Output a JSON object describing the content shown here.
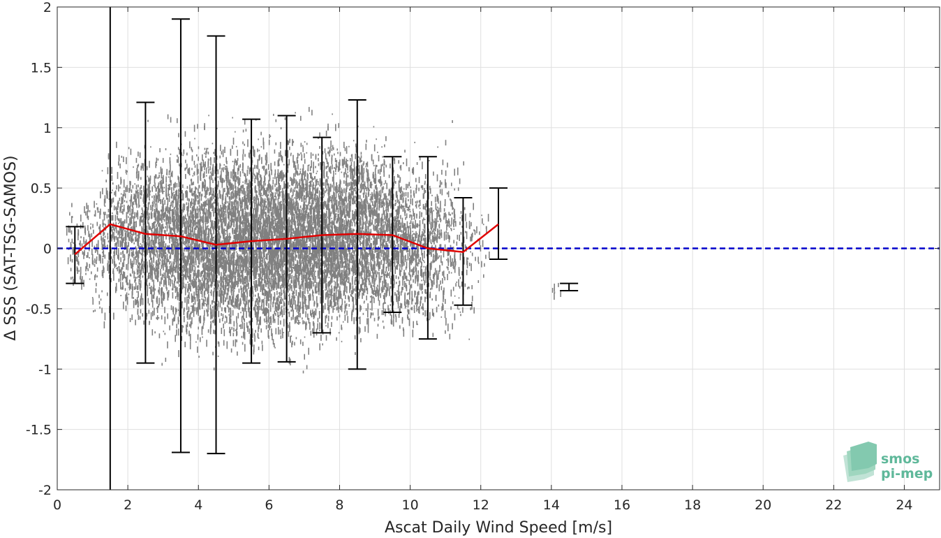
{
  "chart_data": {
    "type": "scatter",
    "xlabel": "Ascat Daily Wind Speed [m/s]",
    "ylabel": "Δ SSS (SAT-TSG-SAMOS)",
    "xlim": [
      0,
      25
    ],
    "ylim": [
      -2,
      2
    ],
    "xticks": [
      0,
      2,
      4,
      6,
      8,
      10,
      12,
      14,
      16,
      18,
      20,
      22,
      24
    ],
    "yticks": [
      -2,
      -1.5,
      -1,
      -0.5,
      0,
      0.5,
      1,
      1.5,
      2
    ],
    "grid": true,
    "scatter_color": "#808080",
    "mean_line_color": "#e00000",
    "reference_line_color": "#0000cc",
    "errorbar_color": "#000000",
    "reference_line": {
      "y": 0,
      "style": "dashed"
    },
    "scatter_cloud": [
      {
        "x": 0.5,
        "center": 0.0,
        "spread": 0.15,
        "n": 60
      },
      {
        "x": 1.0,
        "center": 0.05,
        "spread": 0.25,
        "n": 90
      },
      {
        "x": 1.5,
        "center": 0.15,
        "spread": 0.3,
        "n": 180
      },
      {
        "x": 2.0,
        "center": 0.1,
        "spread": 0.3,
        "n": 260
      },
      {
        "x": 2.5,
        "center": 0.12,
        "spread": 0.32,
        "n": 360
      },
      {
        "x": 3.0,
        "center": 0.1,
        "spread": 0.33,
        "n": 440
      },
      {
        "x": 3.5,
        "center": 0.08,
        "spread": 0.35,
        "n": 520
      },
      {
        "x": 4.0,
        "center": 0.06,
        "spread": 0.36,
        "n": 600
      },
      {
        "x": 4.5,
        "center": 0.05,
        "spread": 0.36,
        "n": 650
      },
      {
        "x": 5.0,
        "center": 0.06,
        "spread": 0.36,
        "n": 700
      },
      {
        "x": 5.5,
        "center": 0.07,
        "spread": 0.36,
        "n": 720
      },
      {
        "x": 6.0,
        "center": 0.08,
        "spread": 0.36,
        "n": 740
      },
      {
        "x": 6.5,
        "center": 0.09,
        "spread": 0.36,
        "n": 740
      },
      {
        "x": 7.0,
        "center": 0.1,
        "spread": 0.35,
        "n": 720
      },
      {
        "x": 7.5,
        "center": 0.11,
        "spread": 0.34,
        "n": 700
      },
      {
        "x": 8.0,
        "center": 0.12,
        "spread": 0.34,
        "n": 650
      },
      {
        "x": 8.5,
        "center": 0.12,
        "spread": 0.34,
        "n": 580
      },
      {
        "x": 9.0,
        "center": 0.1,
        "spread": 0.32,
        "n": 500
      },
      {
        "x": 9.5,
        "center": 0.1,
        "spread": 0.3,
        "n": 420
      },
      {
        "x": 10.0,
        "center": 0.05,
        "spread": 0.3,
        "n": 330
      },
      {
        "x": 10.5,
        "center": 0.02,
        "spread": 0.3,
        "n": 260
      },
      {
        "x": 11.0,
        "center": 0.1,
        "spread": 0.35,
        "n": 160
      },
      {
        "x": 11.5,
        "center": 0.0,
        "spread": 0.3,
        "n": 80
      },
      {
        "x": 12.0,
        "center": 0.0,
        "spread": 0.2,
        "n": 25
      },
      {
        "x": 14.2,
        "center": -0.32,
        "spread": 0.03,
        "n": 6
      }
    ],
    "series": [
      {
        "x": [
          0.5,
          1.5,
          2.5,
          3.5,
          4.5,
          5.5,
          6.5,
          7.5,
          8.5,
          9.5,
          10.5,
          11.5,
          12.5
        ],
        "y": [
          -0.05,
          0.2,
          0.12,
          0.1,
          0.03,
          0.06,
          0.08,
          0.11,
          0.12,
          0.11,
          0.0,
          -0.03,
          0.2
        ]
      }
    ],
    "errorbars": [
      {
        "x": 0.5,
        "low": -0.29,
        "high": 0.18
      },
      {
        "x": 1.5,
        "low": -2.0,
        "high": 2.0
      },
      {
        "x": 2.5,
        "low": -0.95,
        "high": 1.21
      },
      {
        "x": 3.5,
        "low": -1.69,
        "high": 1.9
      },
      {
        "x": 4.5,
        "low": -1.7,
        "high": 1.76
      },
      {
        "x": 5.5,
        "low": -0.95,
        "high": 1.07
      },
      {
        "x": 6.5,
        "low": -0.94,
        "high": 1.1
      },
      {
        "x": 7.5,
        "low": -0.7,
        "high": 0.92
      },
      {
        "x": 8.5,
        "low": -1.0,
        "high": 1.23
      },
      {
        "x": 9.5,
        "low": -0.53,
        "high": 0.76
      },
      {
        "x": 10.5,
        "low": -0.75,
        "high": 0.76
      },
      {
        "x": 11.5,
        "low": -0.47,
        "high": 0.42
      },
      {
        "x": 12.5,
        "low": -0.09,
        "high": 0.5
      },
      {
        "x": 14.5,
        "low": -0.35,
        "high": -0.29
      }
    ]
  },
  "logo": {
    "line1": "smos",
    "line2": "pi-mep",
    "color": "#5fb89a"
  }
}
